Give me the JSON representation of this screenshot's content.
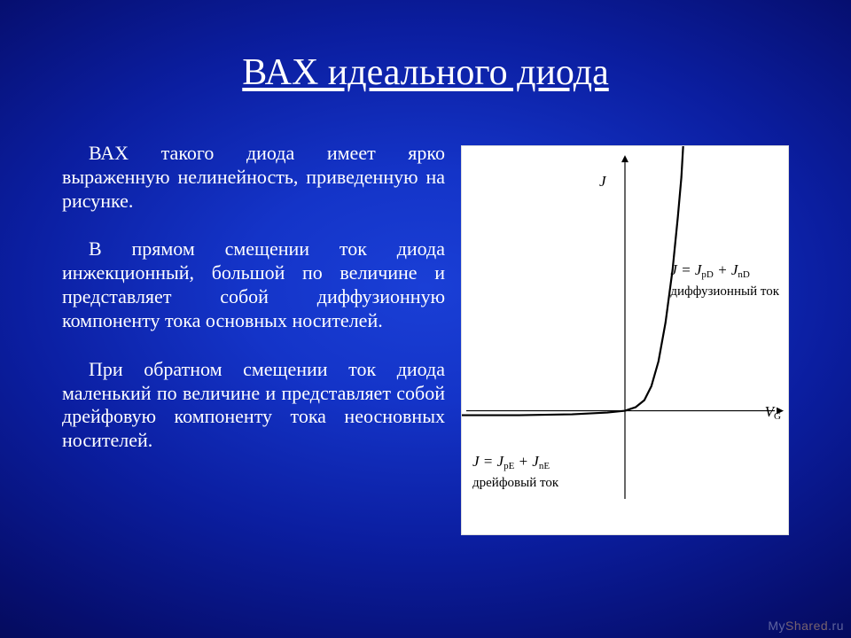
{
  "title": "ВАХ идеального диода",
  "paragraphs": {
    "p1": "ВАХ такого диода имеет ярко выраженную нелинейность, приведенную на рисунке.",
    "p2": "В прямом смещении ток диода инжекционный, большой по величине и представляет собой диффузионную компоненту тока основных носителей.",
    "p3": "При обратном смещении ток диода маленький по величине и представляет собой дрейфовую компоненту тока неосновных носителей."
  },
  "chart": {
    "type": "line",
    "x_axis_label": "V",
    "x_axis_sub": "G",
    "y_axis_label": "J",
    "background_color": "#ffffff",
    "axis_color": "#000000",
    "curve_color": "#000000",
    "formula_forward": "J = J",
    "formula_forward_sub1": "pD",
    "formula_forward_plus": " + J",
    "formula_forward_sub2": "nD",
    "caption_forward": "диффузионный ток",
    "formula_reverse": "J = J",
    "formula_reverse_sub1": "pE",
    "formula_reverse_plus": " + J",
    "formula_reverse_sub2": "nE",
    "caption_reverse": "дрейфовый ток",
    "curve_points": [
      [
        -185,
        5
      ],
      [
        -120,
        5
      ],
      [
        -60,
        4
      ],
      [
        -20,
        2
      ],
      [
        0,
        0
      ],
      [
        12,
        -4
      ],
      [
        22,
        -12
      ],
      [
        30,
        -28
      ],
      [
        38,
        -56
      ],
      [
        46,
        -100
      ],
      [
        54,
        -160
      ],
      [
        60,
        -220
      ],
      [
        64,
        -265
      ],
      [
        66,
        -300
      ]
    ],
    "xlim": [
      -185,
      185
    ],
    "ylim": [
      -320,
      40
    ],
    "axis_stroke_width": 1.2,
    "curve_stroke_width": 2.2,
    "arrow_size": 8
  },
  "watermark": {
    "left": "My",
    "right": "Shared",
    "suffix": ".ru"
  }
}
